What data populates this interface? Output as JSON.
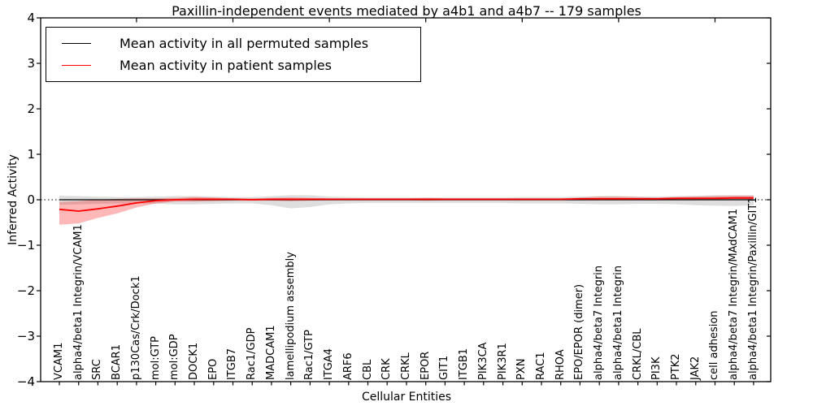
{
  "title": "Paxillin-independent events mediated by a4b1 and a4b7 -- 179 samples",
  "legend": {
    "items": [
      {
        "label": "Mean activity in all permuted samples",
        "color": "#000000"
      },
      {
        "label": "Mean activity in patient samples",
        "color": "#ff0000"
      }
    ]
  },
  "axes": {
    "xlabel": "Cellular Entities",
    "ylabel": "Inferred Activity",
    "ytick_labels": [
      "4",
      "3",
      "2",
      "1",
      "0",
      "−1",
      "−2",
      "−3",
      "−4"
    ]
  },
  "chart_data": {
    "type": "line",
    "title": "Paxillin-independent events mediated by a4b1 and a4b7 -- 179 samples",
    "xlabel": "Cellular Entities",
    "ylabel": "Inferred Activity",
    "ylim": [
      -4,
      4
    ],
    "yticks": [
      4,
      3,
      2,
      1,
      0,
      -1,
      -2,
      -3,
      -4
    ],
    "grid": false,
    "legend_position": "upper left",
    "zero_line": {
      "show": true,
      "style": "dotted",
      "color": "#000000"
    },
    "categories": [
      "VCAM1",
      "alpha4/beta1 Integrin/VCAM1",
      "SRC",
      "BCAR1",
      "p130Cas/Crk/Dock1",
      "mol:GTP",
      "mol:GDP",
      "DOCK1",
      "EPO",
      "ITGB7",
      "Rac1/GDP",
      "MADCAM1",
      "lamellipodium assembly",
      "Rac1/GTP",
      "ITGA4",
      "ARF6",
      "CBL",
      "CRK",
      "CRKL",
      "EPOR",
      "GIT1",
      "ITGB1",
      "PIK3CA",
      "PIK3R1",
      "PXN",
      "RAC1",
      "RHOA",
      "EPO/EPOR (dimer)",
      "alpha4/beta7 Integrin",
      "alpha4/beta1 Integrin",
      "CRKL/CBL",
      "PI3K",
      "PTK2",
      "JAK2",
      "cell adhesion",
      "alpha4/beta7 Integrin/MAdCAM1",
      "alpha4/beta1 Integrin/Paxillin/GIT1"
    ],
    "series": [
      {
        "name": "Mean activity in all permuted samples",
        "color": "#000000",
        "band_color": "rgba(0,0,0,0.13)",
        "values": [
          0,
          0,
          0,
          0,
          0,
          0,
          0,
          0,
          0,
          0,
          0,
          0,
          0,
          0,
          0,
          0,
          0,
          0,
          0,
          0,
          0,
          0,
          0,
          0,
          0,
          0,
          0,
          0,
          0,
          0,
          0,
          0,
          0,
          0,
          0,
          0,
          0
        ],
        "band_upper": [
          0.09,
          0.08,
          0.07,
          0.06,
          0.06,
          0.07,
          0.08,
          0.08,
          0.07,
          0.06,
          0.06,
          0.08,
          0.1,
          0.1,
          0.07,
          0.06,
          0.05,
          0.05,
          0.05,
          0.05,
          0.05,
          0.05,
          0.05,
          0.05,
          0.06,
          0.06,
          0.06,
          0.07,
          0.08,
          0.08,
          0.07,
          0.07,
          0.08,
          0.09,
          0.1,
          0.1,
          0.1
        ],
        "band_lower": [
          -0.11,
          -0.1,
          -0.09,
          -0.08,
          -0.08,
          -0.09,
          -0.1,
          -0.1,
          -0.09,
          -0.08,
          -0.08,
          -0.12,
          -0.19,
          -0.16,
          -0.1,
          -0.08,
          -0.07,
          -0.07,
          -0.07,
          -0.07,
          -0.07,
          -0.07,
          -0.07,
          -0.07,
          -0.08,
          -0.08,
          -0.08,
          -0.09,
          -0.1,
          -0.1,
          -0.09,
          -0.09,
          -0.1,
          -0.12,
          -0.13,
          -0.14,
          -0.12
        ]
      },
      {
        "name": "Mean activity in patient samples",
        "color": "#ff0000",
        "band_color": "rgba(255,0,0,0.28)",
        "values": [
          -0.21,
          -0.25,
          -0.2,
          -0.14,
          -0.07,
          -0.02,
          0.0,
          0.01,
          0.01,
          0.01,
          0.0,
          0.01,
          0.01,
          0.01,
          0.01,
          0.01,
          0.01,
          0.01,
          0.01,
          0.01,
          0.01,
          0.01,
          0.01,
          0.01,
          0.01,
          0.01,
          0.01,
          0.02,
          0.02,
          0.02,
          0.02,
          0.02,
          0.03,
          0.03,
          0.03,
          0.04,
          0.04
        ],
        "band_upper": [
          -0.05,
          -0.03,
          0.0,
          0.02,
          0.03,
          0.03,
          0.04,
          0.06,
          0.05,
          0.03,
          0.03,
          0.04,
          0.05,
          0.04,
          0.03,
          0.03,
          0.03,
          0.03,
          0.03,
          0.04,
          0.03,
          0.03,
          0.03,
          0.03,
          0.03,
          0.03,
          0.03,
          0.05,
          0.07,
          0.07,
          0.06,
          0.05,
          0.06,
          0.07,
          0.08,
          0.09,
          0.09
        ],
        "band_lower": [
          -0.55,
          -0.52,
          -0.4,
          -0.3,
          -0.17,
          -0.08,
          -0.04,
          -0.04,
          -0.03,
          -0.02,
          -0.02,
          -0.02,
          -0.03,
          -0.02,
          -0.01,
          -0.01,
          -0.01,
          -0.01,
          -0.01,
          -0.02,
          -0.01,
          -0.01,
          -0.01,
          -0.01,
          -0.01,
          -0.01,
          -0.01,
          -0.01,
          -0.01,
          0.0,
          0.0,
          0.0,
          0.0,
          0.0,
          0.0,
          0.01,
          0.01
        ]
      }
    ]
  }
}
